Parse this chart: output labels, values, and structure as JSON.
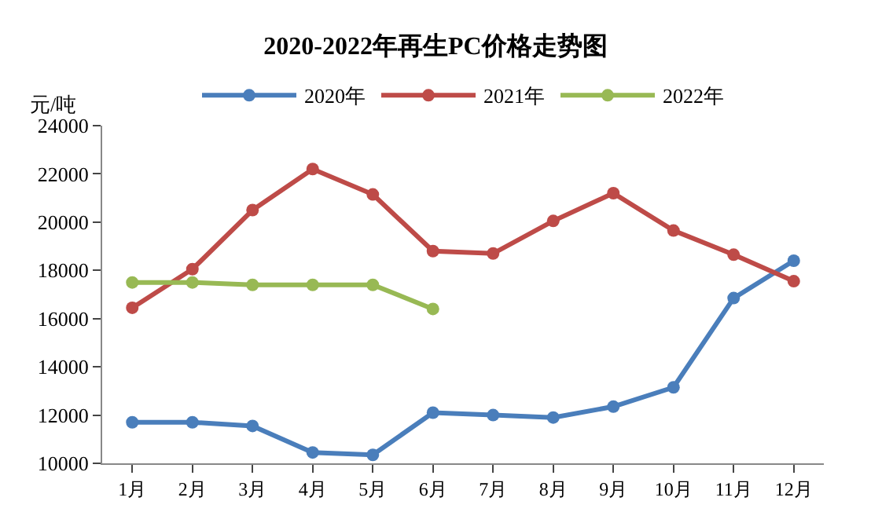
{
  "chart_data": {
    "type": "line",
    "title": "2020-2022年再生PC价格走势图",
    "ylabel": "元/吨",
    "categories": [
      "1月",
      "2月",
      "3月",
      "4月",
      "5月",
      "6月",
      "7月",
      "8月",
      "9月",
      "10月",
      "11月",
      "12月"
    ],
    "series": [
      {
        "name": "2020年",
        "color": "#4a7ebb",
        "values": [
          11700,
          11700,
          11550,
          10450,
          10350,
          12100,
          12000,
          11900,
          12350,
          13150,
          16850,
          18400
        ]
      },
      {
        "name": "2021年",
        "color": "#be4b48",
        "values": [
          16450,
          18050,
          20500,
          22200,
          21150,
          18800,
          18700,
          20050,
          21200,
          19650,
          18650,
          17550
        ]
      },
      {
        "name": "2022年",
        "color": "#98b954",
        "values": [
          17500,
          17500,
          17400,
          17400,
          17400,
          16400,
          null,
          null,
          null,
          null,
          null,
          null
        ]
      }
    ],
    "ylim": [
      10000,
      24000
    ],
    "yticks": [
      10000,
      12000,
      14000,
      16000,
      18000,
      20000,
      22000,
      24000
    ],
    "legend": "top",
    "marker": "circle",
    "line_style": "solid"
  }
}
